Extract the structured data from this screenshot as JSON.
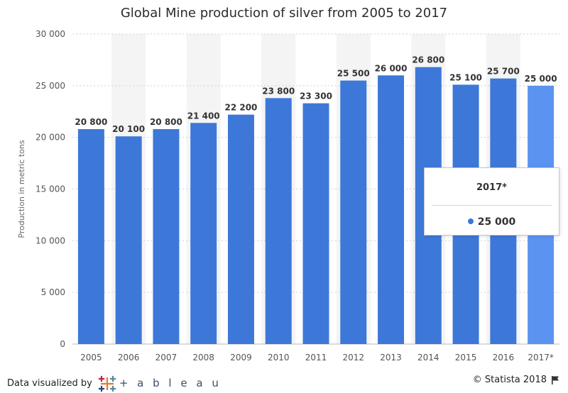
{
  "colors": {
    "bar": "#3d78d8",
    "bar_highlight": "#5b93f0",
    "band": "#f4f4f4",
    "grid": "#cfcfcf",
    "axis_text": "#555555",
    "label_text": "#333333"
  },
  "chart_data": {
    "type": "bar",
    "title": "Global Mine production of silver from 2005 to 2017",
    "xlabel": "",
    "ylabel": "Production in metric tons",
    "categories": [
      "2005",
      "2006",
      "2007",
      "2008",
      "2009",
      "2010",
      "2011",
      "2012",
      "2013",
      "2014",
      "2015",
      "2016",
      "2017*"
    ],
    "values": [
      20800,
      20100,
      20800,
      21400,
      22200,
      23800,
      23300,
      25500,
      26000,
      26800,
      25100,
      25700,
      25000
    ],
    "value_labels": [
      "20 800",
      "20 100",
      "20 800",
      "21 400",
      "22 200",
      "23 800",
      "23 300",
      "25 500",
      "26 000",
      "26 800",
      "25 100",
      "25 700",
      "25 000"
    ],
    "yticks": [
      0,
      5000,
      10000,
      15000,
      20000,
      25000,
      30000
    ],
    "ytick_labels": [
      "0",
      "5 000",
      "10 000",
      "15 000",
      "20 000",
      "25 000",
      "30 000"
    ],
    "ylim": [
      0,
      30000
    ],
    "highlighted_index": 12,
    "grid": true
  },
  "tooltip": {
    "title": "2017*",
    "value": "25 000"
  },
  "footer": {
    "visualized_by": "Data visualized by",
    "tableau_word": "+ a b l e a u",
    "copyright": "© Statista 2018"
  }
}
